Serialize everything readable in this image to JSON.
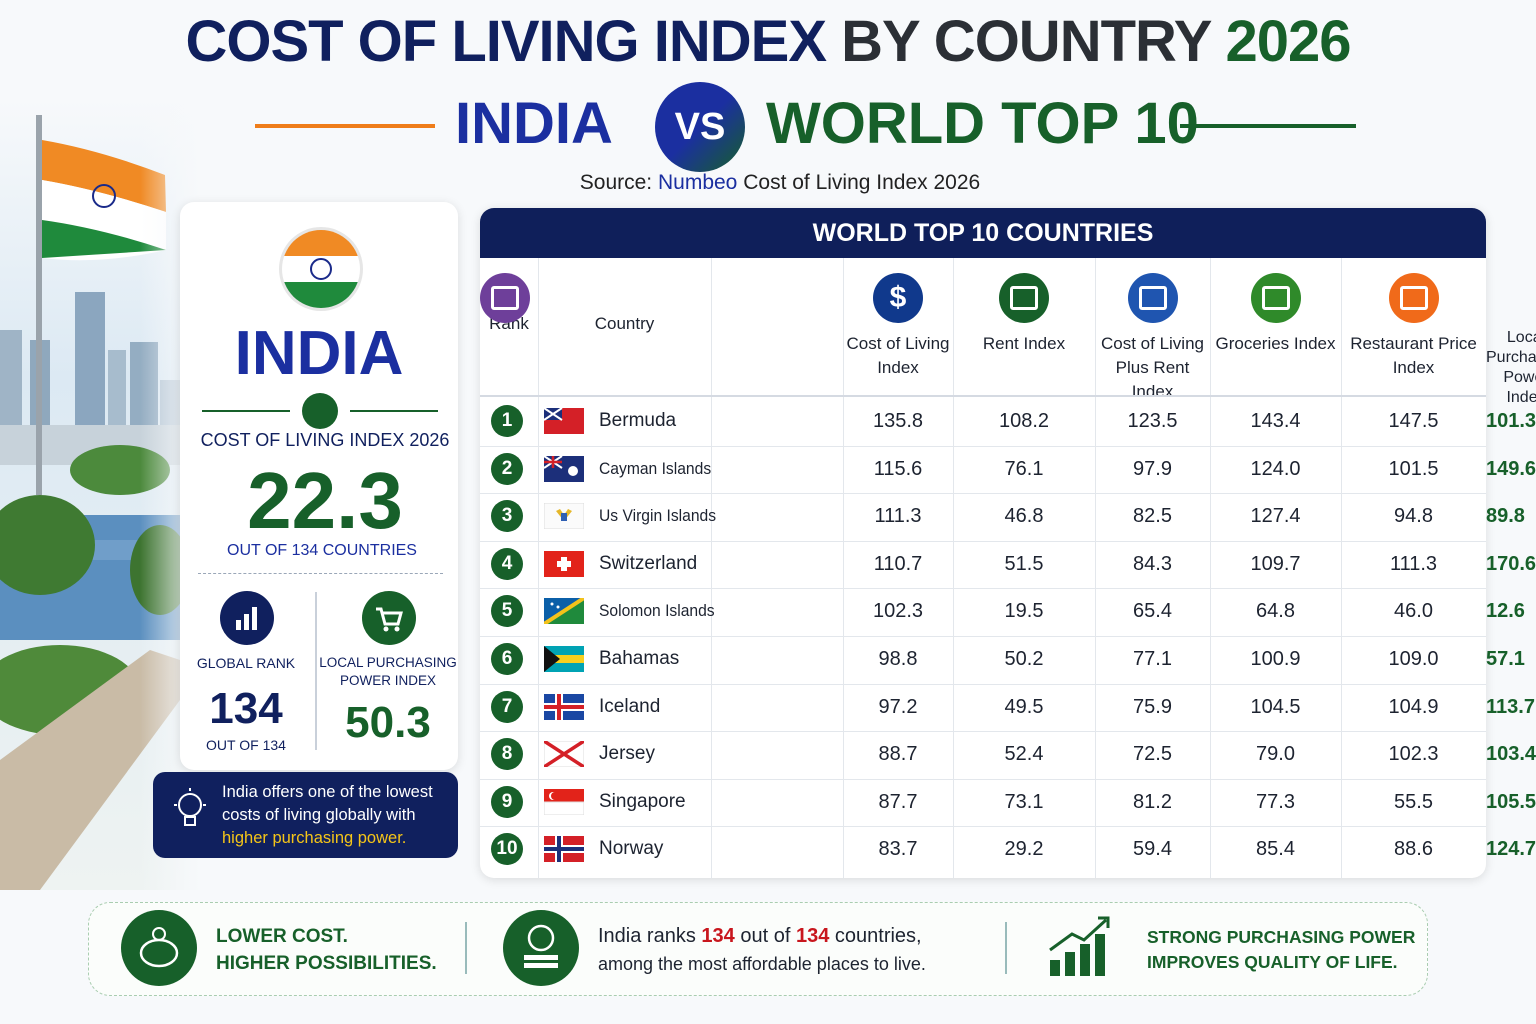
{
  "header": {
    "title_parts": [
      "COST OF LIVING INDEX",
      "BY COUNTRY",
      "2026"
    ],
    "left": "INDIA",
    "versus": "VS",
    "right": "WORLD TOP 10",
    "source_prefix": "Source:",
    "source_name": "Numbeo",
    "source_suffix": "Cost of Living Index 2026"
  },
  "india_card": {
    "name": "INDIA",
    "index_label": "COST OF LIVING INDEX 2026",
    "index_value": "22.3",
    "index_note": "OUT OF 134 COUNTRIES",
    "rank_label": "GLOBAL RANK",
    "rank_value": "134",
    "rank_note": "OUT OF 134",
    "lpp_label": "LOCAL PURCHASING POWER INDEX",
    "lpp_value": "50.3"
  },
  "note": {
    "text": "India offers one of the lowest costs of living globally with",
    "highlight": "higher purchasing power."
  },
  "table": {
    "title": "WORLD TOP 10 COUNTRIES",
    "columns": [
      "Rank",
      "Country",
      "Cost of Living Index",
      "Rent Index",
      "Cost of Living Plus Rent Index",
      "Groceries Index",
      "Restaurant Price Index",
      "Local Purchasing Power Index"
    ],
    "rows": [
      {
        "rank": 1,
        "country": "Bermuda",
        "values": [
          "135.8",
          "108.2",
          "123.5",
          "143.4",
          "147.5",
          "101.3"
        ]
      },
      {
        "rank": 2,
        "country": "Cayman Islands",
        "values": [
          "115.6",
          "76.1",
          "97.9",
          "124.0",
          "101.5",
          "149.6"
        ]
      },
      {
        "rank": 3,
        "country": "Us Virgin Islands",
        "values": [
          "111.3",
          "46.8",
          "82.5",
          "127.4",
          "94.8",
          "89.8"
        ]
      },
      {
        "rank": 4,
        "country": "Switzerland",
        "values": [
          "110.7",
          "51.5",
          "84.3",
          "109.7",
          "111.3",
          "170.6"
        ]
      },
      {
        "rank": 5,
        "country": "Solomon Islands",
        "values": [
          "102.3",
          "19.5",
          "65.4",
          "64.8",
          "46.0",
          "12.6"
        ]
      },
      {
        "rank": 6,
        "country": "Bahamas",
        "values": [
          "98.8",
          "50.2",
          "77.1",
          "100.9",
          "109.0",
          "57.1"
        ]
      },
      {
        "rank": 7,
        "country": "Iceland",
        "values": [
          "97.2",
          "49.5",
          "75.9",
          "104.5",
          "104.9",
          "113.7"
        ]
      },
      {
        "rank": 8,
        "country": "Jersey",
        "values": [
          "88.7",
          "52.4",
          "72.5",
          "79.0",
          "102.3",
          "103.4"
        ]
      },
      {
        "rank": 9,
        "country": "Singapore",
        "values": [
          "87.7",
          "73.1",
          "81.2",
          "77.3",
          "55.5",
          "105.5"
        ]
      },
      {
        "rank": 10,
        "country": "Norway",
        "values": [
          "83.7",
          "29.2",
          "59.4",
          "85.4",
          "88.6",
          "124.7"
        ]
      }
    ]
  },
  "footer": {
    "item1": [
      "LOWER COST.",
      "HIGHER POSSIBILITIES."
    ],
    "item2": {
      "before": "India ranks",
      "rank": "134",
      "middle": "out of",
      "total": "134",
      "after": "countries,",
      "line2": "among the most affordable places to live."
    },
    "item3": [
      "STRONG PURCHASING POWER",
      "IMPROVES QUALITY OF LIFE."
    ]
  }
}
